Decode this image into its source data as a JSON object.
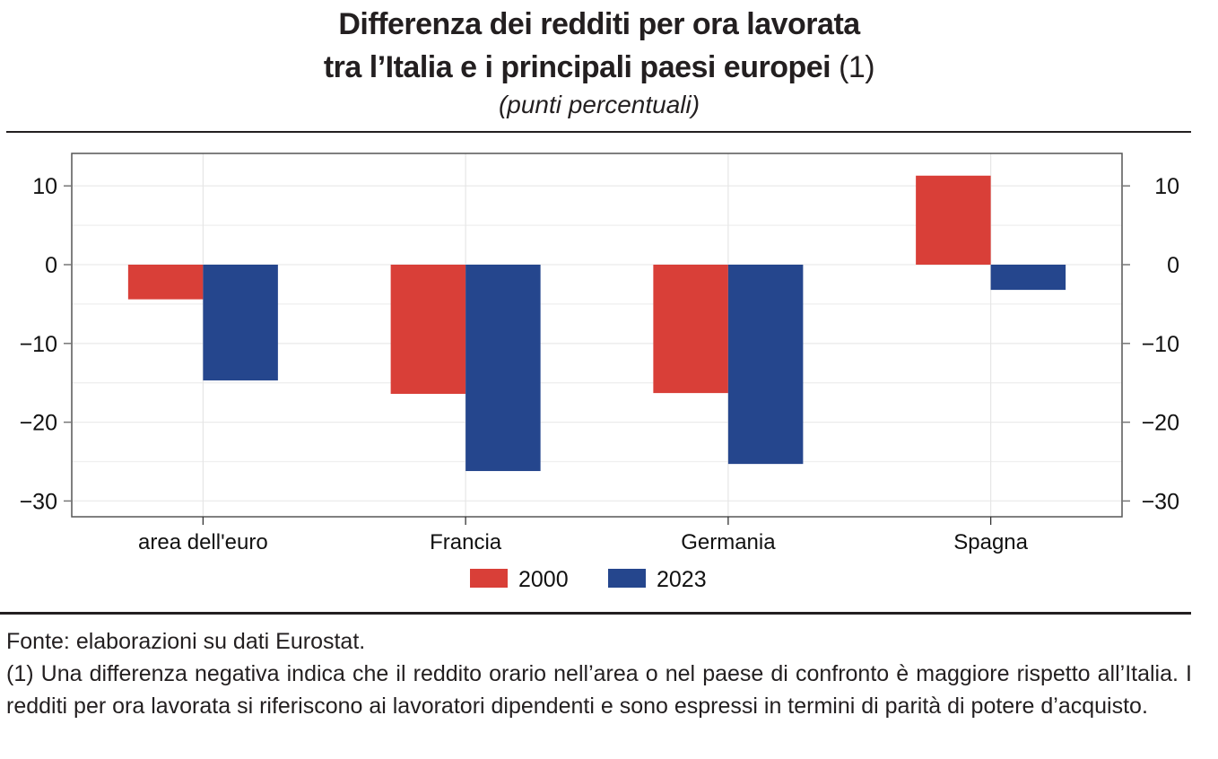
{
  "header": {
    "title_line1": "Differenza dei redditi per ora lavorata",
    "title_line2": "tra l’Italia e i principali paesi europei",
    "title_note": "(1)",
    "subtitle": "(punti percentuali)"
  },
  "chart_data": {
    "type": "bar",
    "title": "Differenza dei redditi per ora lavorata tra l’Italia e i principali paesi europei (1)",
    "subtitle": "(punti percentuali)",
    "xlabel": "",
    "ylabel": "",
    "categories": [
      "area dell'euro",
      "Francia",
      "Germania",
      "Spagna"
    ],
    "series": [
      {
        "name": "2000",
        "color": "#d93f38",
        "values": [
          -4.4,
          -16.4,
          -16.3,
          11.3
        ]
      },
      {
        "name": "2023",
        "color": "#25468d",
        "values": [
          -14.7,
          -26.2,
          -25.3,
          -3.2
        ]
      }
    ],
    "ylim": [
      -32,
      14
    ],
    "yticks": [
      10,
      0,
      -10,
      -20,
      -30
    ],
    "ytick_labels": [
      "10",
      "0",
      "−10",
      "−20",
      "−30"
    ],
    "minor_gridlines": [
      5,
      -5,
      -15,
      -25
    ],
    "grid": true,
    "dual_y_axis": true,
    "legend_position": "bottom-center"
  },
  "footer": {
    "source": "Fonte: elaborazioni su dati Eurostat.",
    "note": "(1) Una differenza negativa indica che il reddito orario nell’area o nel paese di confronto è maggiore rispetto all’Italia. I redditi per ora lavorata si riferiscono ai lavoratori dipendenti e sono espressi in termini di parità di potere d’acquisto."
  }
}
